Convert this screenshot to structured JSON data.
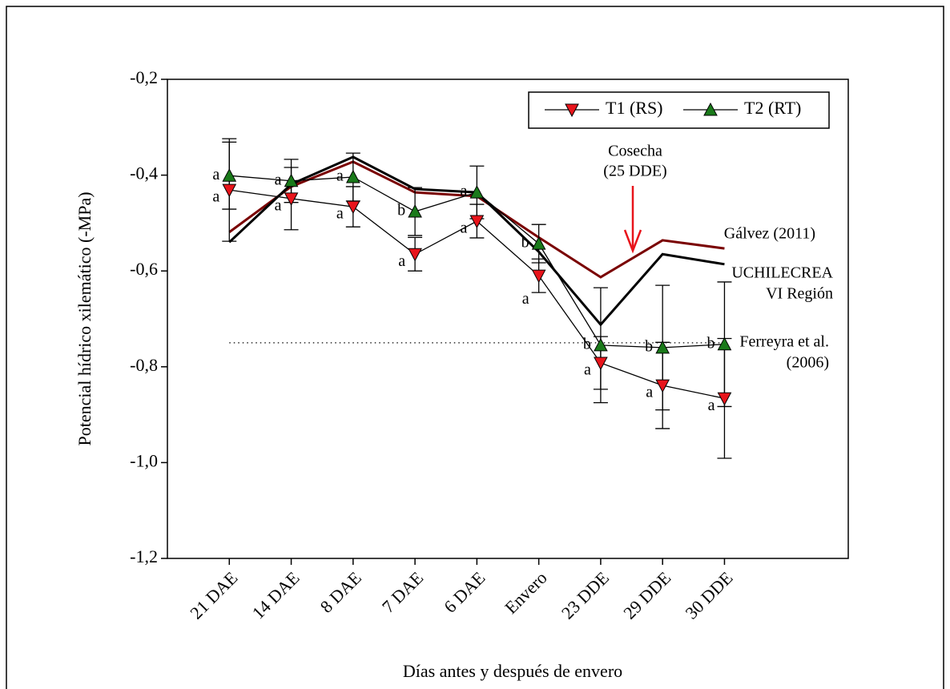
{
  "chart_data": {
    "type": "line",
    "x_label": "Días antes y después de envero",
    "y_label": "Potencial hídrico xilemático (-MPa)",
    "categories": [
      "21 DAE",
      "14 DAE",
      "8 DAE",
      "7 DAE",
      "6 DAE",
      "Envero",
      "23 DDE",
      "29 DDE",
      "30 DDE"
    ],
    "ylim": [
      -1.2,
      -0.2
    ],
    "yticks": [
      {
        "value": -1.2,
        "label": "-1,2"
      },
      {
        "value": -1.0,
        "label": "-1,0"
      },
      {
        "value": -0.8,
        "label": "-0,8"
      },
      {
        "value": -0.6,
        "label": "-0,6"
      },
      {
        "value": -0.4,
        "label": "-0,4"
      },
      {
        "value": -0.2,
        "label": "-0,2"
      }
    ],
    "legend": "upper right",
    "series": [
      {
        "name": "T1 (RS)",
        "color": "#e8141b",
        "marker": "triangle-down",
        "values": [
          -0.431,
          -0.449,
          -0.466,
          -0.565,
          -0.496,
          -0.61,
          -0.792,
          -0.839,
          -0.866
        ],
        "errors": [
          0.107,
          0.065,
          0.042,
          0.035,
          0.035,
          0.035,
          0.055,
          0.09,
          0.125
        ],
        "labels": [
          "a",
          "a",
          "a",
          "a",
          "a",
          "a",
          "a",
          "a",
          "a"
        ]
      },
      {
        "name": "T2 (RT)",
        "color": "#1a7a1a",
        "marker": "triangle-up",
        "values": [
          -0.401,
          -0.412,
          -0.404,
          -0.476,
          -0.436,
          -0.543,
          -0.755,
          -0.76,
          -0.753
        ],
        "errors": [
          0.07,
          0.045,
          0.05,
          0.05,
          0.055,
          0.04,
          0.12,
          0.13,
          0.13
        ],
        "labels": [
          "a",
          "a",
          "a",
          "b",
          "a",
          "b",
          "b",
          "b",
          "b"
        ]
      }
    ],
    "reference_lines": [
      {
        "label_lines": [
          "Gálvez (2011)"
        ],
        "color": "#7a0000",
        "values": [
          -0.519,
          -0.424,
          -0.372,
          -0.436,
          -0.444,
          -0.53,
          -0.613,
          -0.536,
          -0.553
        ]
      },
      {
        "label_lines": [
          "UCHILECREA",
          "VI Región"
        ],
        "color": "#000000",
        "values": [
          -0.54,
          -0.419,
          -0.362,
          -0.429,
          -0.436,
          -0.56,
          -0.712,
          -0.565,
          -0.586
        ]
      },
      {
        "label_lines": [
          "Ferreyra et al.",
          "(2006)"
        ],
        "color": "#000000",
        "dotted": true,
        "value": -0.75
      }
    ],
    "annotation": {
      "lines": [
        "Cosecha",
        "(25 DDE)"
      ],
      "color": "#e8141b"
    }
  }
}
